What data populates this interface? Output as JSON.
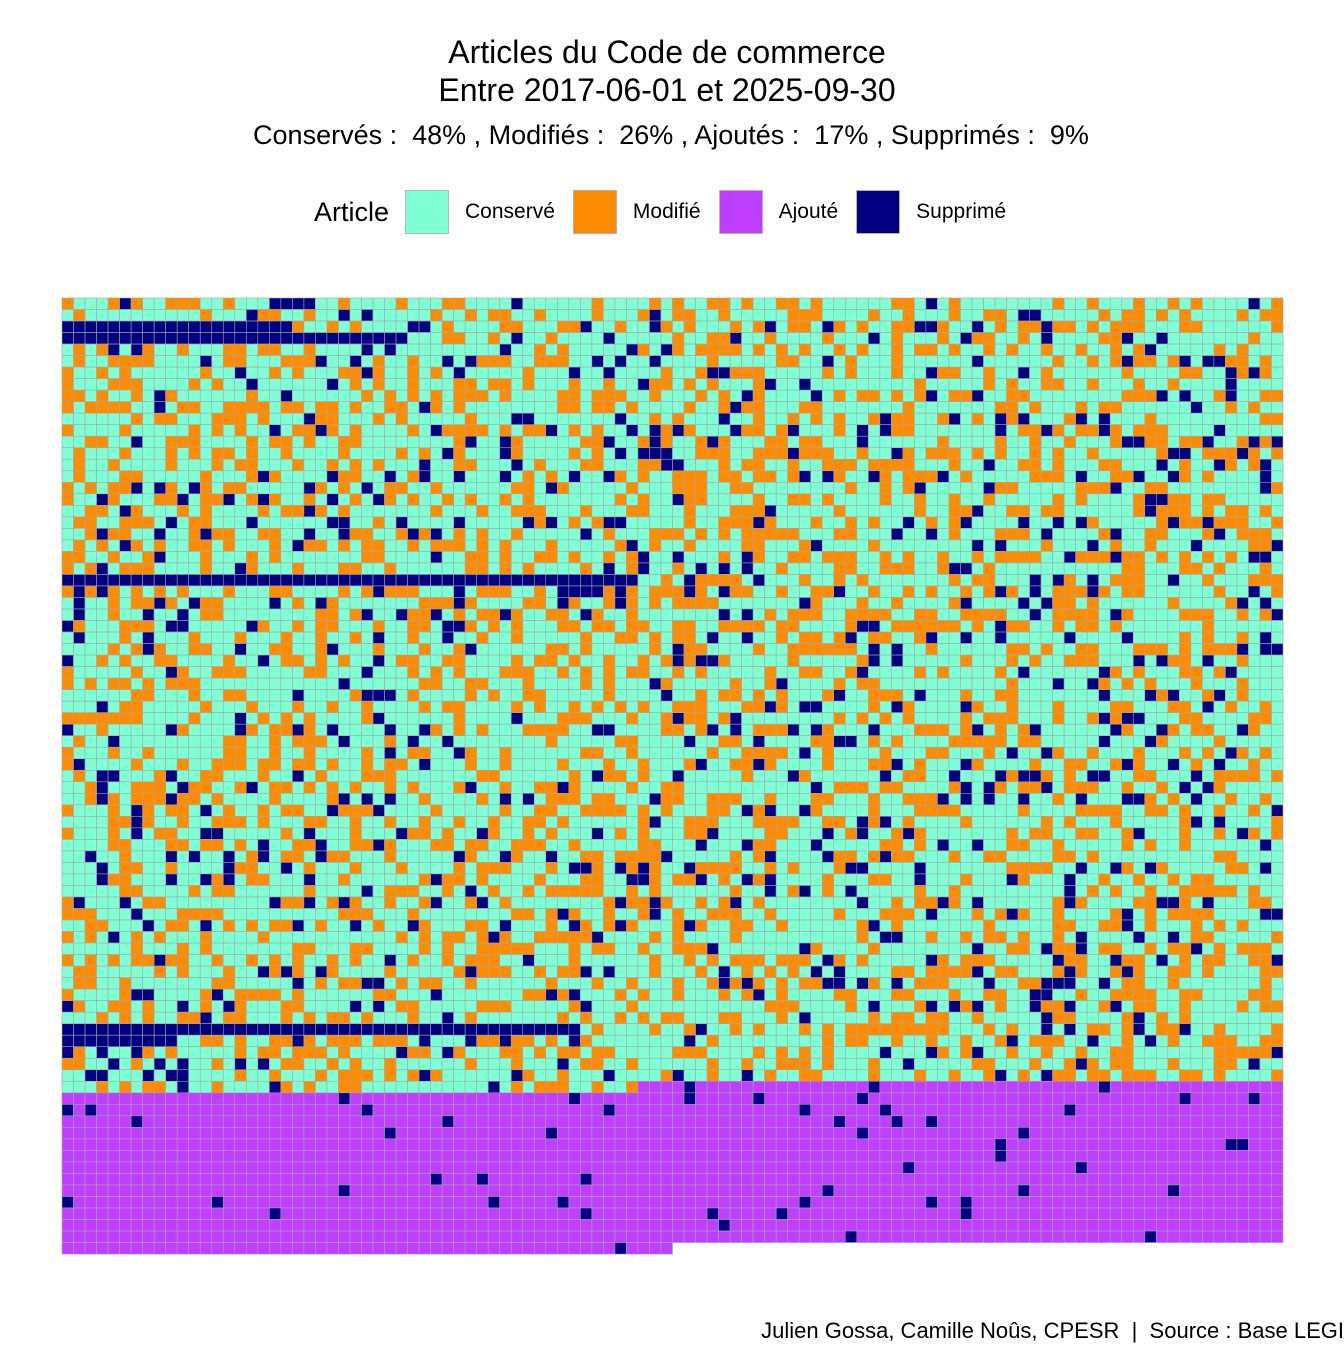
{
  "title": "Articles du Code de commerce",
  "subtitle_line": "Entre 2017-06-01 et 2025-09-30",
  "stats_line": "Conservés :  48% , Modifiés :  26% , Ajoutés :  17% , Supprimés :  9%",
  "caption": "Julien Gossa, Camille Noûs, CPESR  |  Source : Base LEGI",
  "legend": {
    "title": "Article",
    "items": [
      {
        "label": "Conservé",
        "color": "#7FFFD4"
      },
      {
        "label": "Modifié",
        "color": "#FF8C00"
      },
      {
        "label": "Ajouté",
        "color": "#BF3EFF"
      },
      {
        "label": "Supprimé",
        "color": "#000080"
      }
    ]
  },
  "chart_data": {
    "type": "waffle",
    "title": "Articles du Code de commerce",
    "subtitle": "Entre 2017-06-01 et 2025-09-30",
    "categories": [
      "Conservé",
      "Modifié",
      "Ajouté",
      "Supprimé"
    ],
    "percentages": [
      48,
      26,
      17,
      9
    ],
    "grid_columns": 106,
    "ordering": "article order; existing articles first, added articles after",
    "last_row_filled_columns": 53
  }
}
